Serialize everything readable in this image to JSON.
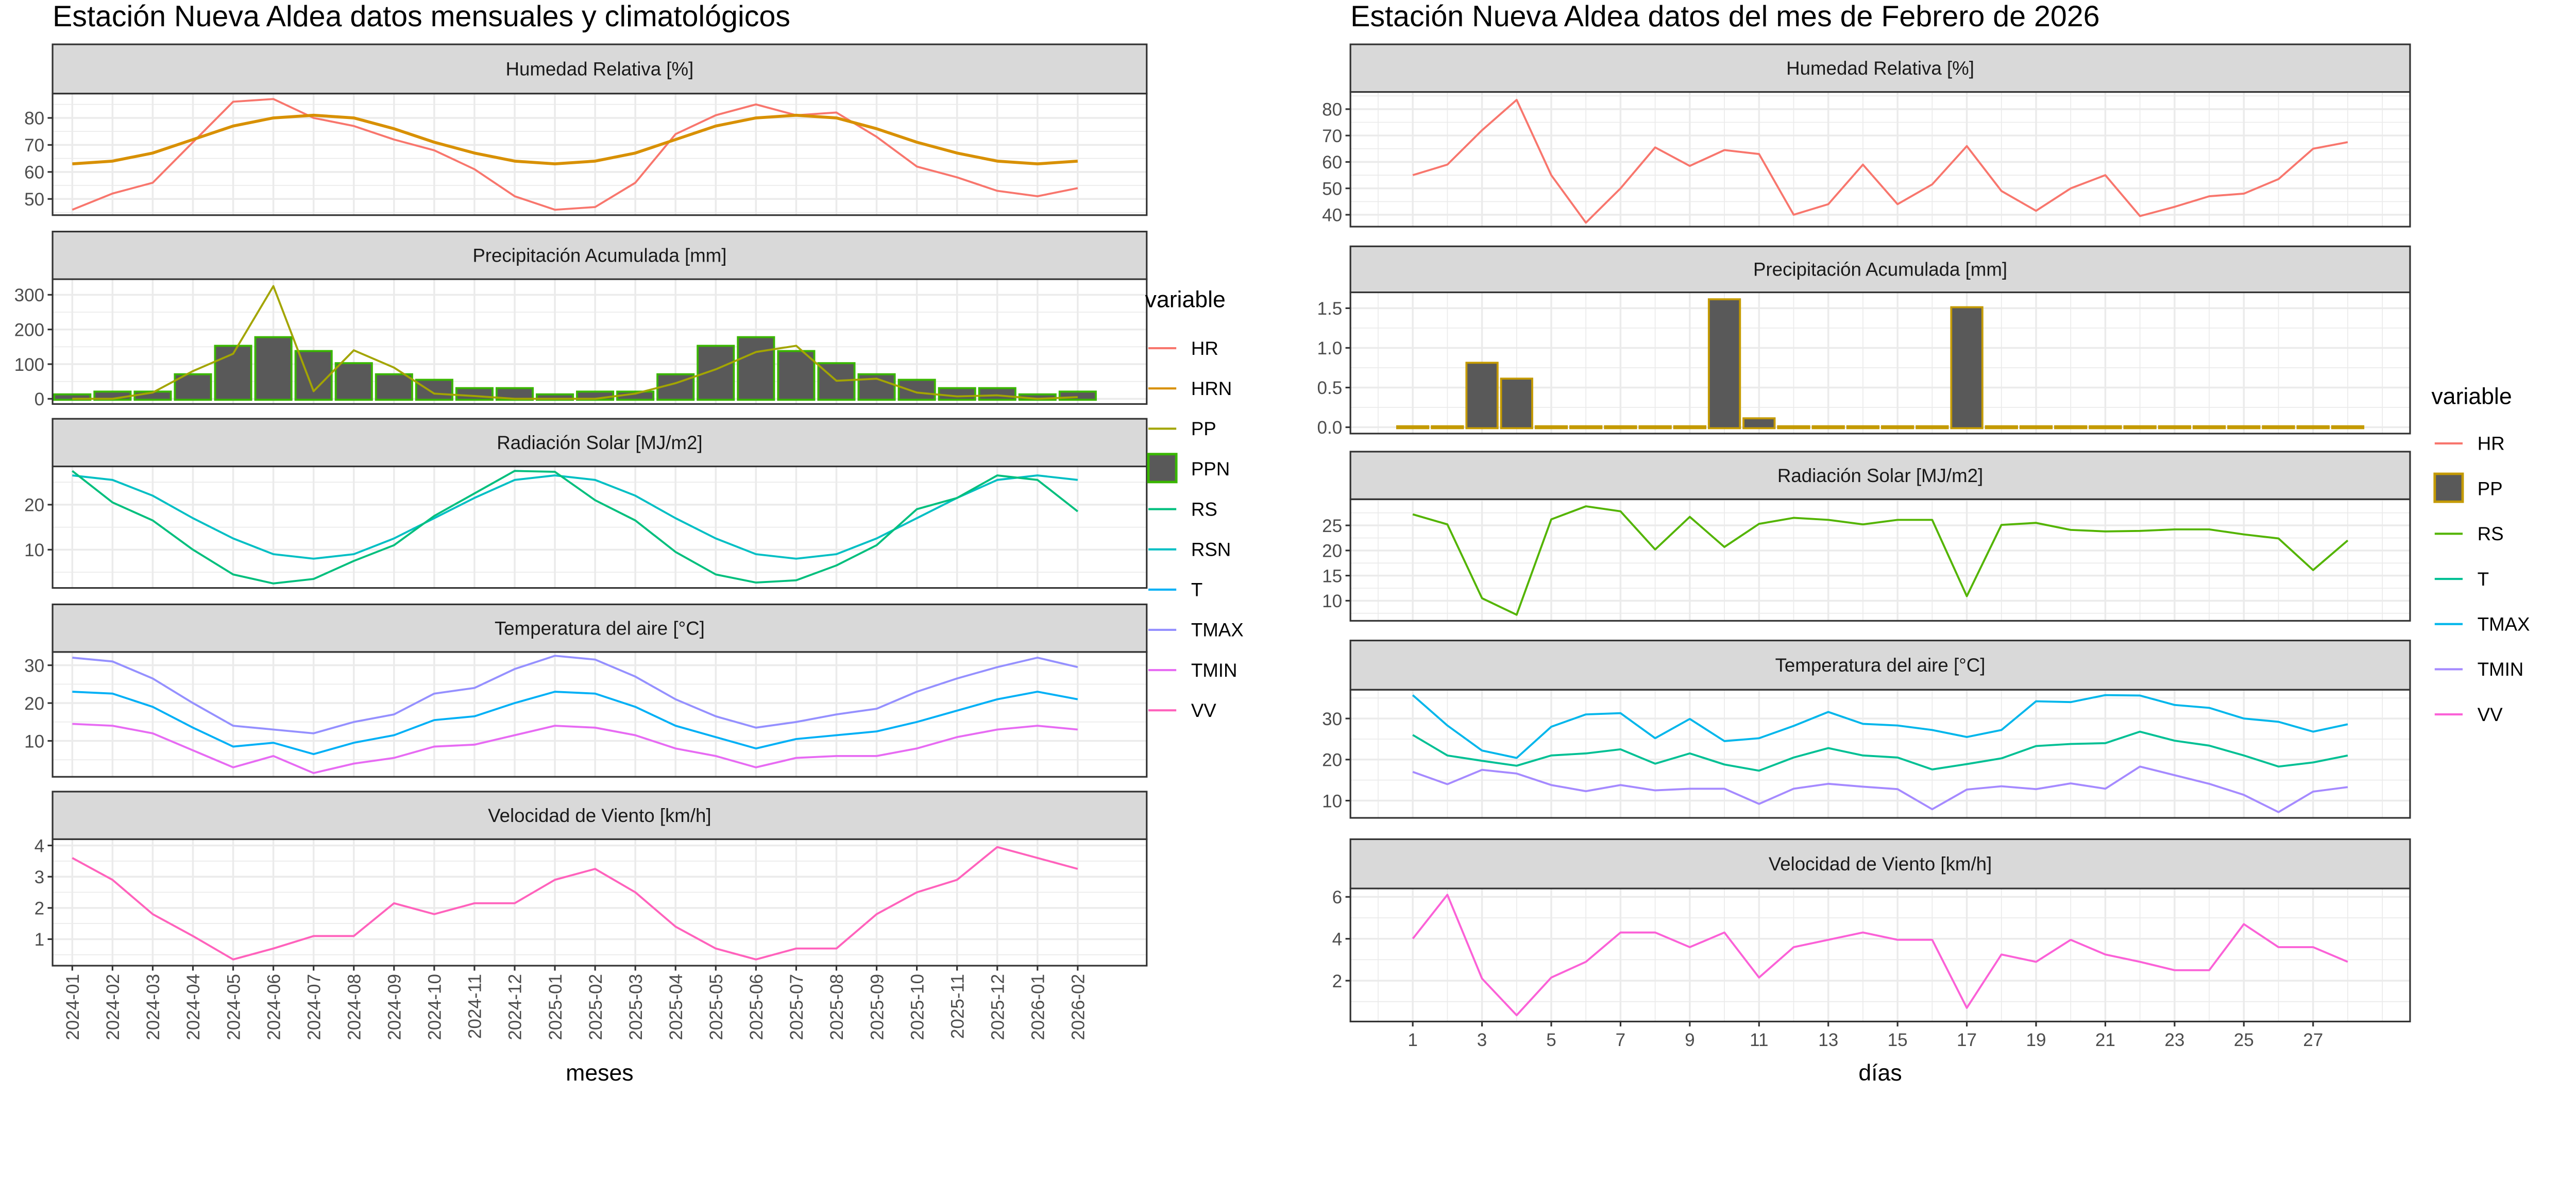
{
  "chart_data": [
    {
      "type": "line",
      "title": "Estación Nueva Aldea datos mensuales y climatológicos",
      "xlabel": "meses",
      "ylabel": "",
      "x": [
        "2024-01",
        "2024-02",
        "2024-03",
        "2024-04",
        "2024-05",
        "2024-06",
        "2024-07",
        "2024-08",
        "2024-09",
        "2024-10",
        "2024-11",
        "2024-12",
        "2025-01",
        "2025-02",
        "2025-03",
        "2025-04",
        "2025-05",
        "2025-06",
        "2025-07",
        "2025-08",
        "2025-09",
        "2025-10",
        "2025-11",
        "2025-12",
        "2026-01",
        "2026-02"
      ],
      "legend": {
        "title": "variable",
        "placement": "right",
        "entries": [
          {
            "name": "HR",
            "color": "#F8766D",
            "key": "line"
          },
          {
            "name": "HRN",
            "color": "#D89000",
            "key": "line"
          },
          {
            "name": "PP",
            "color": "#A3A500",
            "key": "line"
          },
          {
            "name": "PPN",
            "color": "#39B600",
            "fill": "#595959",
            "key": "box"
          },
          {
            "name": "RS",
            "color": "#00BF7D",
            "key": "line"
          },
          {
            "name": "RSN",
            "color": "#00BFC4",
            "key": "line"
          },
          {
            "name": "T",
            "color": "#00B0F6",
            "key": "line"
          },
          {
            "name": "TMAX",
            "color": "#9590FF",
            "key": "line"
          },
          {
            "name": "TMIN",
            "color": "#E76BF3",
            "key": "line"
          },
          {
            "name": "VV",
            "color": "#FF62BC",
            "key": "line"
          }
        ]
      },
      "panels": [
        {
          "title": "Humedad Relativa [%]",
          "ylim": [
            44,
            89
          ],
          "yticks": [
            50,
            60,
            70,
            80
          ],
          "series": [
            {
              "name": "HR",
              "type": "line",
              "color": "#F8766D",
              "values": [
                46,
                52,
                56,
                71,
                86,
                87,
                80,
                77,
                72,
                68,
                61,
                51,
                46,
                47,
                56,
                74,
                81,
                85,
                81,
                82,
                73,
                62,
                58,
                53,
                51,
                54
              ]
            },
            {
              "name": "HRN",
              "type": "line",
              "color": "#D89000",
              "values": [
                63,
                64,
                67,
                72,
                77,
                80,
                81,
                80,
                76,
                71,
                67,
                64,
                63,
                64,
                67,
                72,
                77,
                80,
                81,
                80,
                76,
                71,
                67,
                64,
                63,
                64
              ]
            }
          ]
        },
        {
          "title": "Precipitación Acumulada [mm]",
          "ylim": [
            -15,
            345
          ],
          "yticks": [
            0,
            100,
            200,
            300
          ],
          "series": [
            {
              "name": "PPN",
              "type": "bar",
              "color": "#39B600",
              "fill": "#595959",
              "values": [
                10,
                18,
                18,
                68,
                150,
                175,
                135,
                100,
                68,
                52,
                28,
                28,
                10,
                18,
                18,
                68,
                150,
                175,
                135,
                100,
                68,
                52,
                28,
                28,
                10,
                18
              ]
            },
            {
              "name": "PP",
              "type": "line",
              "color": "#A3A500",
              "values": [
                0,
                0,
                18,
                80,
                130,
                325,
                22,
                140,
                90,
                15,
                8,
                0,
                0,
                0,
                15,
                45,
                85,
                135,
                153,
                52,
                58,
                18,
                7,
                10,
                0,
                5
              ]
            }
          ]
        },
        {
          "title": "Radiación Solar [MJ/m2]",
          "ylim": [
            1.5,
            28.5
          ],
          "yticks": [
            10,
            20
          ],
          "series": [
            {
              "name": "RSN",
              "type": "line",
              "color": "#00BFC4",
              "values": [
                26.5,
                25.5,
                22,
                17,
                12.5,
                9,
                8,
                9,
                12.5,
                17,
                21.5,
                25.5,
                26.5,
                25.5,
                22,
                17,
                12.5,
                9,
                8,
                9,
                12.5,
                17,
                21.5,
                25.5,
                26.5,
                25.5
              ]
            },
            {
              "name": "RS",
              "type": "line",
              "color": "#00BF7D",
              "values": [
                27.5,
                20.5,
                16.5,
                10,
                4.5,
                2.5,
                3.5,
                7.5,
                11,
                17.5,
                22.5,
                27.5,
                27.3,
                21,
                16.5,
                9.5,
                4.5,
                2.7,
                3.2,
                6.5,
                11,
                19,
                21.5,
                26.5,
                25.5,
                18.5
              ]
            }
          ]
        },
        {
          "title": "Temperatura del aire [°C]",
          "ylim": [
            0.5,
            33.5
          ],
          "yticks": [
            10,
            20,
            30
          ],
          "series": [
            {
              "name": "TMAX",
              "type": "line",
              "color": "#9590FF",
              "values": [
                32,
                31,
                26.5,
                20,
                14,
                13,
                12,
                15,
                17,
                22.5,
                24,
                29,
                32.5,
                31.5,
                27,
                21,
                16.5,
                13.5,
                15,
                17,
                18.5,
                23,
                26.5,
                29.5,
                32,
                29.5
              ]
            },
            {
              "name": "T",
              "type": "line",
              "color": "#00B0F6",
              "values": [
                23,
                22.5,
                19,
                13.5,
                8.5,
                9.5,
                6.5,
                9.5,
                11.5,
                15.5,
                16.5,
                20,
                23,
                22.5,
                19,
                14,
                11,
                8,
                10.5,
                11.5,
                12.5,
                15,
                18,
                21,
                23,
                21
              ]
            },
            {
              "name": "TMIN",
              "type": "line",
              "color": "#E76BF3",
              "values": [
                14.5,
                14,
                12,
                7.5,
                3,
                6,
                1.5,
                4,
                5.5,
                8.5,
                9,
                11.5,
                14,
                13.5,
                11.5,
                8,
                6,
                3,
                5.5,
                6,
                6,
                8,
                11,
                13,
                14,
                13
              ]
            }
          ]
        },
        {
          "title": "Velocidad de Viento [km/h]",
          "ylim": [
            0.15,
            4.2
          ],
          "yticks": [
            1,
            2,
            3,
            4
          ],
          "series": [
            {
              "name": "VV",
              "type": "line",
              "color": "#FF62BC",
              "values": [
                3.6,
                2.9,
                1.8,
                1.1,
                0.35,
                0.7,
                1.1,
                1.1,
                2.15,
                1.8,
                2.15,
                2.15,
                2.9,
                3.25,
                2.5,
                1.4,
                0.7,
                0.35,
                0.7,
                0.7,
                1.8,
                2.5,
                2.9,
                3.95,
                3.6,
                3.25
              ]
            }
          ]
        }
      ]
    },
    {
      "type": "line",
      "title": "Estación Nueva Aldea datos del mes de Febrero de 2026",
      "xlabel": "días",
      "ylabel": "",
      "x": [
        1,
        2,
        3,
        4,
        5,
        6,
        7,
        8,
        9,
        10,
        11,
        12,
        13,
        14,
        15,
        16,
        17,
        18,
        19,
        20,
        21,
        22,
        23,
        24,
        25,
        26,
        27,
        28
      ],
      "xlim": [
        -0.8,
        29.8
      ],
      "xticks": [
        1,
        3,
        5,
        7,
        9,
        11,
        13,
        15,
        17,
        19,
        21,
        23,
        25,
        27
      ],
      "legend": {
        "title": "variable",
        "placement": "right",
        "entries": [
          {
            "name": "HR",
            "color": "#F8766D",
            "key": "line"
          },
          {
            "name": "PP",
            "color": "#C49A00",
            "fill": "#595959",
            "key": "box"
          },
          {
            "name": "RS",
            "color": "#53B400",
            "key": "line"
          },
          {
            "name": "T",
            "color": "#00C094",
            "key": "line"
          },
          {
            "name": "TMAX",
            "color": "#00B6EB",
            "key": "line"
          },
          {
            "name": "TMIN",
            "color": "#A58AFF",
            "key": "line"
          },
          {
            "name": "VV",
            "color": "#FB61D7",
            "key": "line"
          }
        ]
      },
      "panels": [
        {
          "title": "Humedad Relativa [%]",
          "ylim": [
            35.5,
            86.5
          ],
          "yticks": [
            40,
            50,
            60,
            70,
            80
          ],
          "series": [
            {
              "name": "HR",
              "type": "line",
              "color": "#F8766D",
              "values": [
                55,
                59,
                72,
                83.5,
                55,
                37,
                50,
                65.5,
                58.5,
                64.5,
                63,
                40,
                44,
                59,
                44,
                51.5,
                66,
                49,
                41.5,
                50,
                55,
                39.5,
                43,
                47,
                48,
                53.5,
                65,
                67.5
              ]
            }
          ]
        },
        {
          "title": "Precipitación Acumulada [mm]",
          "ylim": [
            -0.08,
            1.7
          ],
          "yticks": [
            0.0,
            0.5,
            1.0,
            1.5
          ],
          "ytick_labels": [
            "0.0",
            "0.5",
            "1.0",
            "1.5"
          ],
          "series": [
            {
              "name": "PP",
              "type": "bar",
              "color": "#C49A00",
              "fill": "#595959",
              "values": [
                0,
                0,
                0.8,
                0.6,
                0,
                0,
                0,
                0,
                0,
                1.6,
                0.1,
                0,
                0,
                0,
                0,
                0,
                1.5,
                0,
                0,
                0,
                0,
                0,
                0,
                0,
                0,
                0,
                0,
                0
              ]
            }
          ]
        },
        {
          "title": "Radiación Solar [MJ/m2]",
          "ylim": [
            6,
            30.2
          ],
          "yticks": [
            10,
            15,
            20,
            25
          ],
          "series": [
            {
              "name": "RS",
              "type": "line",
              "color": "#53B400",
              "values": [
                27.2,
                25.2,
                10.5,
                7.2,
                26.2,
                28.8,
                27.8,
                20.2,
                26.7,
                20.7,
                25.3,
                26.5,
                26.1,
                25.2,
                26.1,
                26.1,
                10.9,
                25.1,
                25.5,
                24.1,
                23.8,
                23.9,
                24.2,
                24.2,
                23.2,
                22.4,
                16.1,
                22
              ]
            }
          ]
        },
        {
          "title": "Temperatura del aire [°C]",
          "ylim": [
            5.8,
            37
          ],
          "yticks": [
            10,
            20,
            30
          ],
          "series": [
            {
              "name": "TMAX",
              "type": "line",
              "color": "#00B6EB",
              "values": [
                35.7,
                28.3,
                22.2,
                20.4,
                28,
                31,
                31.3,
                25.2,
                29.9,
                24.5,
                25.2,
                28.2,
                31.6,
                28.7,
                28.3,
                27.2,
                25.5,
                27.2,
                34.2,
                34,
                35.7,
                35.6,
                33.3,
                32.6,
                30,
                29.2,
                26.8,
                28.6
              ]
            },
            {
              "name": "T",
              "type": "line",
              "color": "#00C094",
              "values": [
                26,
                21,
                19.7,
                18.5,
                21,
                21.5,
                22.5,
                19,
                21.5,
                18.8,
                17.3,
                20.5,
                22.8,
                21,
                20.5,
                17.6,
                18.9,
                20.3,
                23.3,
                23.8,
                24,
                26.8,
                24.6,
                23.4,
                21,
                18.3,
                19.3,
                21
              ]
            },
            {
              "name": "TMIN",
              "type": "line",
              "color": "#A58AFF",
              "values": [
                17,
                14,
                17.5,
                16.6,
                13.8,
                12.3,
                13.8,
                12.5,
                12.9,
                12.9,
                9.2,
                12.9,
                14.1,
                13.4,
                12.8,
                7.9,
                12.7,
                13.5,
                12.8,
                14.2,
                12.9,
                18.3,
                16.2,
                14.1,
                11.4,
                7.2,
                12.2,
                13.3
              ]
            }
          ]
        },
        {
          "title": "Velocidad de Viento [km/h]",
          "ylim": [
            0.05,
            6.4
          ],
          "yticks": [
            2,
            4,
            6
          ],
          "series": [
            {
              "name": "VV",
              "type": "line",
              "color": "#FB61D7",
              "values": [
                4,
                6.1,
                2.1,
                0.35,
                2.15,
                2.9,
                4.3,
                4.3,
                3.6,
                4.3,
                2.15,
                3.6,
                3.95,
                4.3,
                3.95,
                3.95,
                0.7,
                3.25,
                2.9,
                3.95,
                3.25,
                2.9,
                2.5,
                2.5,
                4.7,
                3.6,
                3.6,
                2.9
              ]
            }
          ]
        }
      ]
    }
  ]
}
